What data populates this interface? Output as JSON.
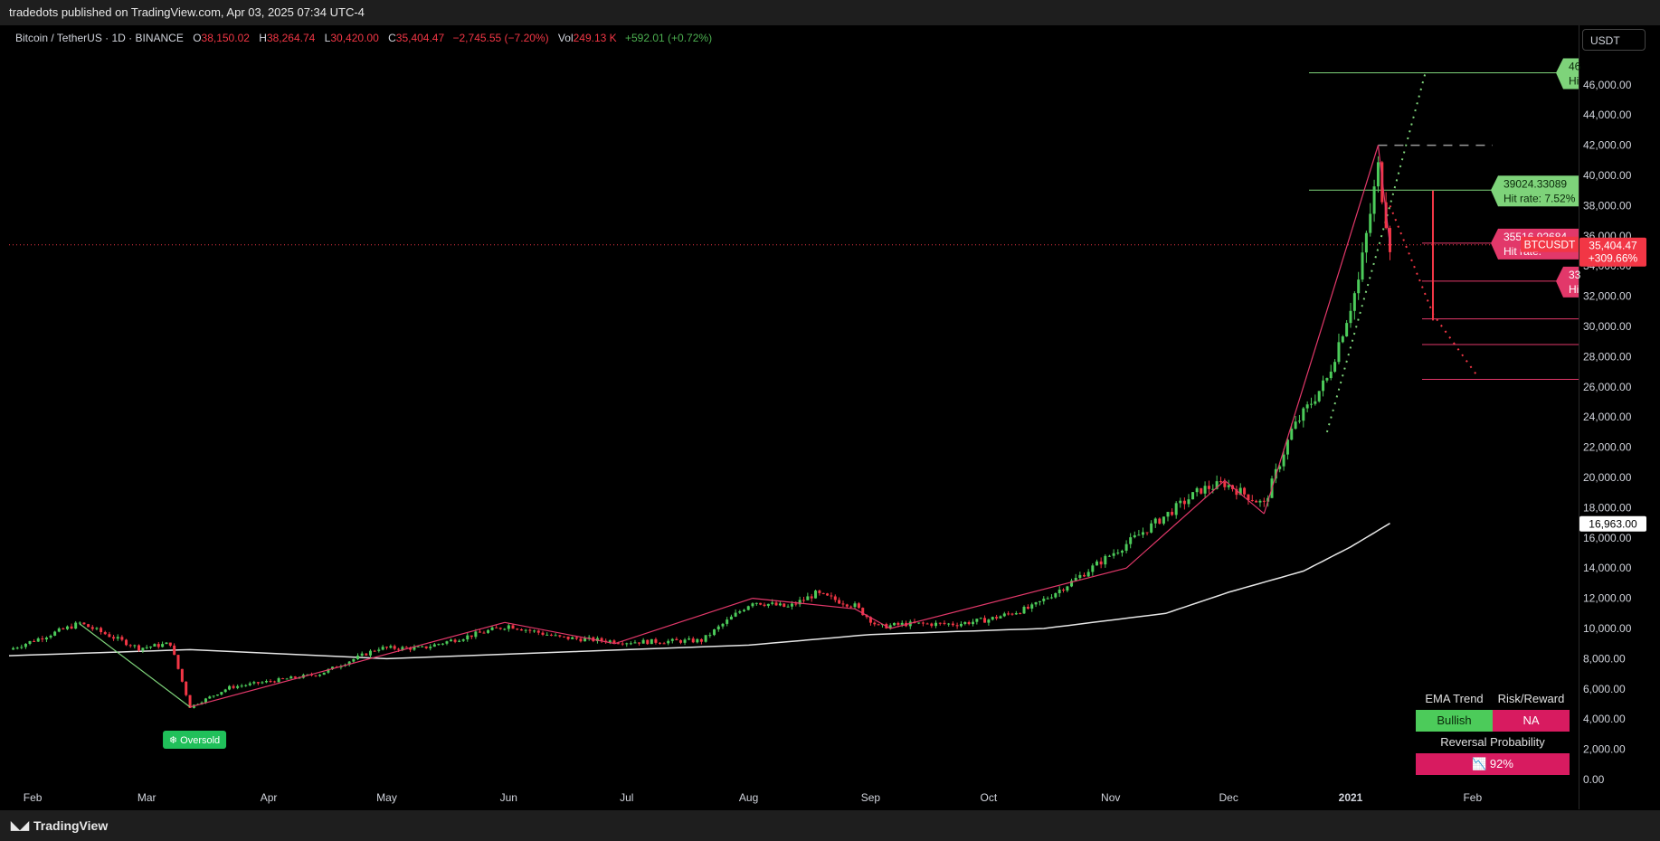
{
  "header": {
    "publisher": "tradedots published on TradingView.com, Apr 03, 2025 07:34 UTC-4"
  },
  "legend": {
    "symbol": "Bitcoin / TetherUS · 1D · BINANCE",
    "o_label": "O",
    "o": "38,150.02",
    "h_label": "H",
    "h": "38,264.74",
    "l_label": "L",
    "l": "30,420.00",
    "c_label": "C",
    "c": "35,404.47",
    "change": "−2,745.55 (−7.20%)",
    "vol_label": "Vol",
    "vol": "249.13 K",
    "vol_change": "+592.01 (+0.72%)"
  },
  "currency": "USDT",
  "footer": {
    "brand": "TradingView",
    "brand_icon": "tradingview-logo-icon"
  },
  "price_tag": {
    "value": "35,404.47",
    "pct": "+309.66%",
    "symbol": "BTCUSDT"
  },
  "ema_tag": "16,963.00",
  "targets": [
    {
      "price": "46",
      "hit": "Hi",
      "color": "#7ed37a"
    },
    {
      "price": "39024.33089",
      "hit": "Hit rate: 7.52%",
      "color": "#7ed37a"
    },
    {
      "price": "35516.92684",
      "hit": "Hit rate:",
      "color": "#e2386a"
    },
    {
      "price": "33",
      "hit": "Hi",
      "color": "#e2386a"
    }
  ],
  "oversold": {
    "label": "Oversold",
    "icon": "snowflake-icon"
  },
  "table": {
    "ema_label": "EMA Trend",
    "rr_label": "Risk/Reward",
    "ema_value": "Bullish",
    "rr_value": "NA",
    "rp_label": "Reversal Probability",
    "rp_value": "92%",
    "rp_icon": "chart-down-icon"
  },
  "colors": {
    "up": "#4ccb5a",
    "down": "#f23645",
    "zigzag": "#e2386a",
    "ema": "#e6e6e6",
    "bg": "#000000"
  },
  "chart_data": {
    "type": "candlestick",
    "title": "Bitcoin / TetherUS · 1D · BINANCE",
    "y_ticks": [
      "46,000.00",
      "44,000.00",
      "42,000.00",
      "40,000.00",
      "38,000.00",
      "36,000.00",
      "34,000.00",
      "32,000.00",
      "30,000.00",
      "28,000.00",
      "26,000.00",
      "24,000.00",
      "22,000.00",
      "20,000.00",
      "18,000.00",
      "16,000.00",
      "14,000.00",
      "12,000.00",
      "10,000.00",
      "8,000.00",
      "6,000.00",
      "4,000.00",
      "2,000.00",
      "0.00"
    ],
    "x_ticks": [
      "Feb",
      "Mar",
      "Apr",
      "May",
      "Jun",
      "Jul",
      "Aug",
      "Sep",
      "Oct",
      "Nov",
      "Dec",
      "2021",
      "Feb"
    ],
    "ylim": [
      0,
      46000
    ],
    "close_path": [
      [
        "2020-01-26",
        8600
      ],
      [
        "2020-02-13",
        10350
      ],
      [
        "2020-02-28",
        8700
      ],
      [
        "2020-03-07",
        9000
      ],
      [
        "2020-03-12",
        4800
      ],
      [
        "2020-03-22",
        6100
      ],
      [
        "2020-04-14",
        7000
      ],
      [
        "2020-04-29",
        8700
      ],
      [
        "2020-05-10",
        8700
      ],
      [
        "2020-06-01",
        10200
      ],
      [
        "2020-06-14",
        9400
      ],
      [
        "2020-07-01",
        9100
      ],
      [
        "2020-07-20",
        9200
      ],
      [
        "2020-08-02",
        11800
      ],
      [
        "2020-08-11",
        11400
      ],
      [
        "2020-08-18",
        12300
      ],
      [
        "2020-08-28",
        11500
      ],
      [
        "2020-09-03",
        10100
      ],
      [
        "2020-09-10",
        10300
      ],
      [
        "2020-09-23",
        10300
      ],
      [
        "2020-10-01",
        10600
      ],
      [
        "2020-10-12",
        11400
      ],
      [
        "2020-10-21",
        12900
      ],
      [
        "2020-11-05",
        15600
      ],
      [
        "2020-11-24",
        19200
      ],
      [
        "2020-11-30",
        19600
      ],
      [
        "2020-12-10",
        18200
      ],
      [
        "2020-12-17",
        23100
      ],
      [
        "2020-12-26",
        26500
      ],
      [
        "2021-01-03",
        33000
      ],
      [
        "2021-01-08",
        40500
      ],
      [
        "2021-01-11",
        35404
      ]
    ],
    "ema": [
      [
        "2020-01-26",
        8200
      ],
      [
        "2020-03-12",
        8600
      ],
      [
        "2020-05-01",
        8000
      ],
      [
        "2020-07-01",
        8600
      ],
      [
        "2020-08-01",
        8900
      ],
      [
        "2020-09-01",
        9600
      ],
      [
        "2020-10-15",
        10000
      ],
      [
        "2020-11-15",
        11000
      ],
      [
        "2020-12-01",
        12400
      ],
      [
        "2020-12-20",
        13800
      ],
      [
        "2021-01-01",
        15400
      ],
      [
        "2021-01-11",
        16963
      ]
    ],
    "zigzag": [
      [
        "2020-02-13",
        10300
      ],
      [
        "2020-03-12",
        4800
      ],
      [
        "2020-05-31",
        10400
      ],
      [
        "2020-06-28",
        9000
      ],
      [
        "2020-08-02",
        12000
      ],
      [
        "2020-08-28",
        11300
      ],
      [
        "2020-09-06",
        10000
      ],
      [
        "2020-11-05",
        14000
      ],
      [
        "2020-11-30",
        19800
      ],
      [
        "2020-12-10",
        17600
      ],
      [
        "2021-01-08",
        42000
      ],
      [
        "2021-01-11",
        35404
      ]
    ],
    "target_lines": [
      46800,
      39024.33089,
      35516.92684,
      33000,
      30500,
      28800,
      26500
    ],
    "last_price": 35404.47,
    "ema_value": 16963.0
  }
}
